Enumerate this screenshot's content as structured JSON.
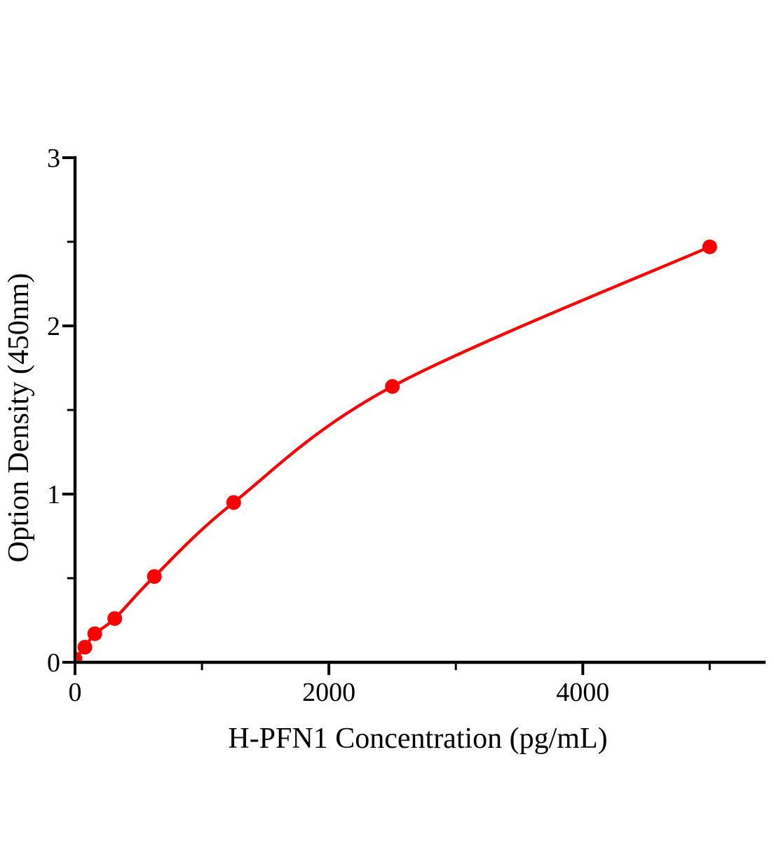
{
  "page": {
    "background": "#ffffff"
  },
  "chart_data": {
    "type": "line",
    "title": "",
    "xlabel": "H-PFN1 Concentration (pg/mL)",
    "ylabel": "Option Density (450nm)",
    "x": [
      0,
      78,
      156,
      313,
      625,
      1250,
      2500,
      5000
    ],
    "y": [
      0.02,
      0.09,
      0.17,
      0.26,
      0.51,
      0.95,
      1.64,
      2.47
    ],
    "xlim": [
      0,
      5440
    ],
    "ylim": [
      0,
      3
    ],
    "x_major_ticks": [
      0,
      2000,
      4000
    ],
    "x_minor_ticks": [
      1000,
      3000,
      5000
    ],
    "y_major_ticks": [
      0,
      1,
      2,
      3
    ],
    "y_minor_ticks": [
      0.5,
      1.5,
      2.5
    ],
    "curve": "smooth",
    "marker": "circle",
    "line_color": "#ff0000",
    "marker_color": "#ff0000",
    "axis_color": "#000000",
    "grid": false,
    "legend": false
  }
}
